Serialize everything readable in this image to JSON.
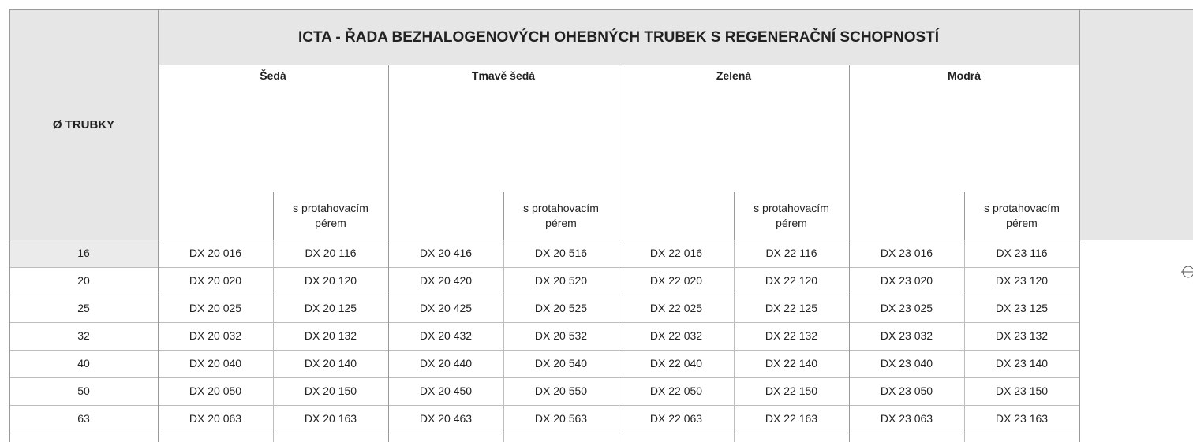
{
  "header": {
    "title": "ICTA - ŘADA BEZHALOGENOVÝCH OHEBNÝCH TRUBEK S REGENERAČNÍ SCHOPNOSTÍ",
    "diameter_label": "Ø TRUBKY",
    "pull_wire_label": "s protahovacím pérem"
  },
  "groups": [
    {
      "name": "Šedá",
      "color": "#dcdcdc"
    },
    {
      "name": "Tmavě šedá",
      "color": "#787d86"
    },
    {
      "name": "Zelená",
      "color": "#2b9a3c"
    },
    {
      "name": "Modrá",
      "color": "#2f86d6"
    }
  ],
  "rows": [
    {
      "diameter": 16,
      "codes": [
        "DX 20 016",
        "DX 20 116",
        "DX 20 416",
        "DX 20 516",
        "DX 22 016",
        "DX 22 116",
        "DX 23 016",
        "DX 23 116"
      ]
    },
    {
      "diameter": 20,
      "codes": [
        "DX 20 020",
        "DX 20 120",
        "DX 20 420",
        "DX 20 520",
        "DX 22 020",
        "DX 22 120",
        "DX 23 020",
        "DX 23 120"
      ]
    },
    {
      "diameter": 25,
      "codes": [
        "DX 20 025",
        "DX 20 125",
        "DX 20 425",
        "DX 20 525",
        "DX 22 025",
        "DX 22 125",
        "DX 23 025",
        "DX 23 125"
      ]
    },
    {
      "diameter": 32,
      "codes": [
        "DX 20 032",
        "DX 20 132",
        "DX 20 432",
        "DX 20 532",
        "DX 22 032",
        "DX 22 132",
        "DX 23 032",
        "DX 23 132"
      ]
    },
    {
      "diameter": 40,
      "codes": [
        "DX 20 040",
        "DX 20 140",
        "DX 20 440",
        "DX 20 540",
        "DX 22 040",
        "DX 22 140",
        "DX 23 040",
        "DX 23 140"
      ]
    },
    {
      "diameter": 50,
      "codes": [
        "DX 20 050",
        "DX 20 150",
        "DX 20 450",
        "DX 20 550",
        "DX 22 050",
        "DX 22 150",
        "DX 23 050",
        "DX 23 150"
      ]
    },
    {
      "diameter": 63,
      "codes": [
        "DX 20 063",
        "DX 20 163",
        "DX 20 463",
        "DX 20 563",
        "DX 22 063",
        "DX 22 163",
        "DX 23 063",
        "DX 23 163"
      ]
    }
  ]
}
